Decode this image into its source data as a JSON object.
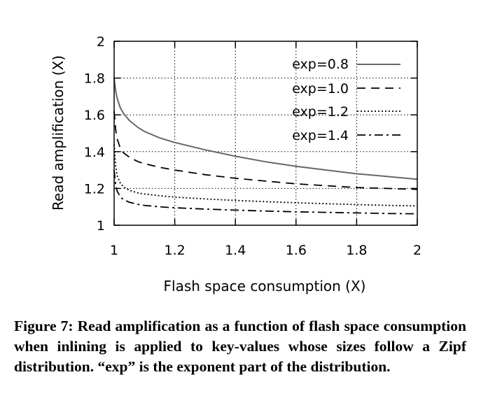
{
  "chart_data": {
    "type": "line",
    "title": "",
    "xlabel": "Flash space consumption (X)",
    "ylabel": "Read amplification (X)",
    "xlim": [
      1,
      2
    ],
    "ylim": [
      1,
      2
    ],
    "xticks": [
      "1",
      "1.2",
      "1.4",
      "1.6",
      "1.8",
      "2"
    ],
    "yticks": [
      "1",
      "1.2",
      "1.4",
      "1.6",
      "1.8",
      "2"
    ],
    "grid": true,
    "legend_position": "top-right",
    "series": [
      {
        "name": "exp=0.8",
        "style": "solid",
        "color": "#666666",
        "x": [
          1.0,
          1.005,
          1.01,
          1.02,
          1.03,
          1.05,
          1.08,
          1.1,
          1.15,
          1.2,
          1.3,
          1.4,
          1.5,
          1.6,
          1.7,
          1.8,
          1.9,
          2.0
        ],
        "y": [
          1.8,
          1.73,
          1.69,
          1.64,
          1.61,
          1.57,
          1.53,
          1.51,
          1.475,
          1.45,
          1.41,
          1.375,
          1.345,
          1.32,
          1.3,
          1.28,
          1.265,
          1.25
        ]
      },
      {
        "name": "exp=1.0",
        "style": "dashed",
        "color": "#000000",
        "x": [
          1.0,
          1.005,
          1.01,
          1.02,
          1.03,
          1.05,
          1.08,
          1.1,
          1.15,
          1.2,
          1.3,
          1.4,
          1.5,
          1.6,
          1.7,
          1.8,
          1.9,
          2.0
        ],
        "y": [
          1.62,
          1.52,
          1.47,
          1.42,
          1.395,
          1.37,
          1.345,
          1.335,
          1.315,
          1.3,
          1.275,
          1.255,
          1.24,
          1.225,
          1.215,
          1.205,
          1.2,
          1.195
        ]
      },
      {
        "name": "exp=1.2",
        "style": "dotted",
        "color": "#000000",
        "x": [
          1.0,
          1.005,
          1.01,
          1.02,
          1.03,
          1.05,
          1.08,
          1.1,
          1.15,
          1.2,
          1.3,
          1.4,
          1.5,
          1.6,
          1.7,
          1.8,
          1.9,
          2.0
        ],
        "y": [
          1.44,
          1.32,
          1.27,
          1.23,
          1.21,
          1.19,
          1.175,
          1.17,
          1.16,
          1.153,
          1.143,
          1.135,
          1.128,
          1.122,
          1.117,
          1.112,
          1.108,
          1.105
        ]
      },
      {
        "name": "exp=1.4",
        "style": "dash-dot",
        "color": "#000000",
        "x": [
          1.0,
          1.005,
          1.01,
          1.02,
          1.03,
          1.05,
          1.08,
          1.1,
          1.15,
          1.2,
          1.3,
          1.4,
          1.5,
          1.6,
          1.7,
          1.8,
          1.9,
          2.0
        ],
        "y": [
          1.3,
          1.22,
          1.185,
          1.155,
          1.14,
          1.125,
          1.113,
          1.108,
          1.1,
          1.095,
          1.088,
          1.082,
          1.077,
          1.073,
          1.07,
          1.067,
          1.064,
          1.062
        ]
      }
    ]
  },
  "caption": "Figure 7: Read amplification as a function of flash space consumption when inlining is applied to key-values whose sizes follow a Zipf distribution. “exp” is the exponent part of the distribution."
}
